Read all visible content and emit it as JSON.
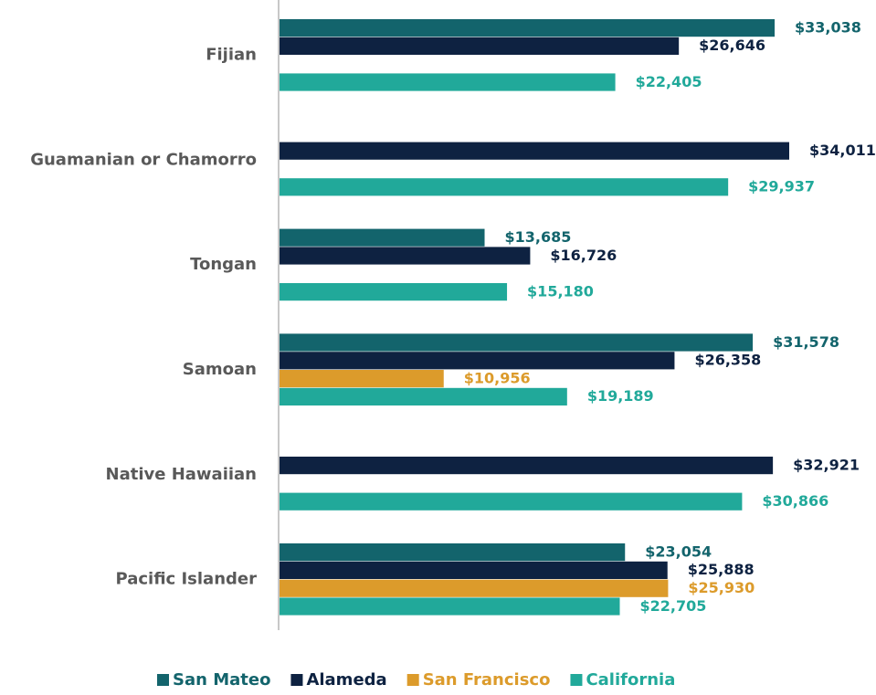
{
  "chart_data": {
    "type": "hbar",
    "categories": [
      "Fijian",
      "Guamanian or Chamorro",
      "Tongan",
      "Samoan",
      "Native Hawaiian",
      "Pacific Islander"
    ],
    "series": [
      {
        "name": "San Mateo",
        "color": "#13646c",
        "values": [
          33038,
          null,
          13685,
          31578,
          null,
          23054
        ],
        "value_labels": [
          "$33,038",
          null,
          "$13,685",
          "$31,578",
          null,
          "$23,054"
        ]
      },
      {
        "name": "Alameda",
        "color": "#0e2241",
        "values": [
          26646,
          34011,
          16726,
          26358,
          32921,
          25888
        ],
        "value_labels": [
          "$26,646",
          "$34,011",
          "$16,726",
          "$26,358",
          "$32,921",
          "$25,888"
        ]
      },
      {
        "name": "San Francisco",
        "color": "#dc9b2b",
        "values": [
          null,
          null,
          null,
          10956,
          null,
          25930
        ],
        "value_labels": [
          null,
          null,
          null,
          "$10,956",
          null,
          "$25,930"
        ]
      },
      {
        "name": "California",
        "color": "#21a99a",
        "values": [
          22405,
          29937,
          15180,
          19189,
          30866,
          22705
        ],
        "value_labels": [
          "$22,405",
          "$29,937",
          "$15,180",
          "$19,189",
          "$30,866",
          "$22,705"
        ]
      }
    ],
    "legend": "bottom"
  }
}
